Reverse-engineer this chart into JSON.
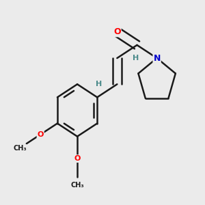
{
  "background_color": "#ebebeb",
  "bond_color": "#1a1a1a",
  "atom_colors": {
    "O": "#ff0000",
    "N": "#0000cc",
    "H": "#4a8a8a",
    "C": "#1a1a1a"
  },
  "figure_size": [
    3.0,
    3.0
  ],
  "dpi": 100
}
